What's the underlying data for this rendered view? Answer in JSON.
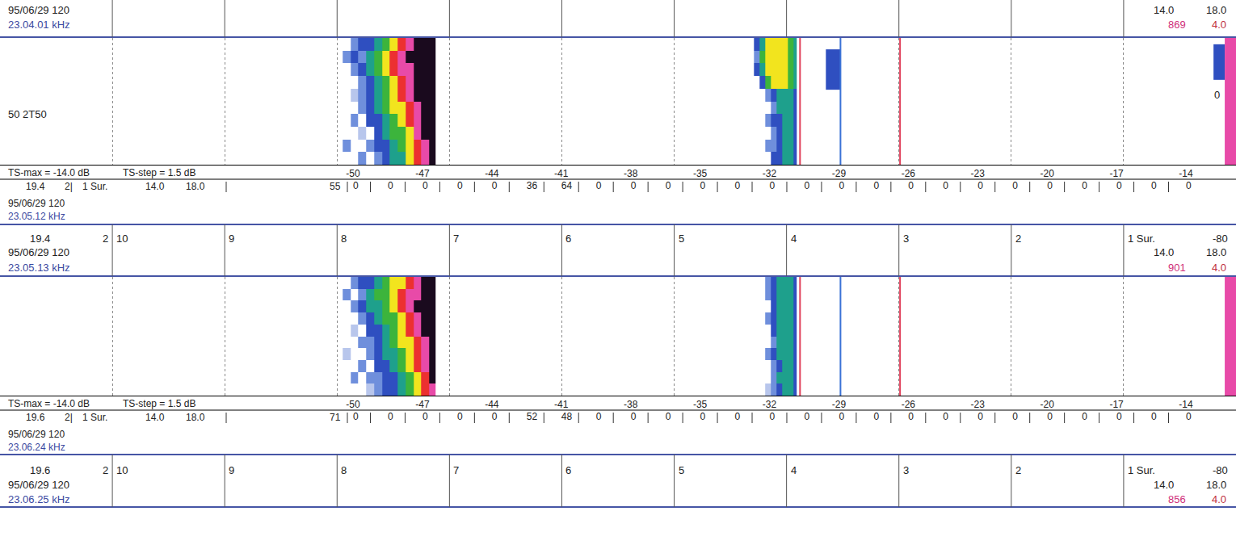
{
  "chart_data": {
    "type": "echogram",
    "xlim": [
      11,
      0
    ],
    "xticks": [
      10,
      9,
      8,
      7,
      6,
      5,
      4,
      3,
      2,
      {
        "value": 1,
        "label": "1 Sur."
      }
    ],
    "ylim": [
      0,
      10
    ],
    "grid": true,
    "zlim": [
      -80,
      -44
    ],
    "colors": [
      "#b8c6ec",
      "#6f8fdc",
      "#2f4fc0",
      "#1ea08c",
      "#3cb43c",
      "#f2e41e",
      "#ec3030",
      "#e84aa8",
      "#1a0a1e"
    ],
    "ts_axis": {
      "caption": [
        "TS-max = -14.0 dB",
        "TS-step = 1.5 dB"
      ],
      "xlim": [
        -50,
        -14
      ],
      "xticks": [
        -50,
        -47,
        -44,
        -41,
        -38,
        -35,
        -32,
        -29,
        -26,
        -23,
        -20,
        -17,
        -14
      ],
      "values": [
        -50,
        -48.5,
        -47,
        -45.5,
        -44,
        -42.5,
        -41,
        -39.5,
        -38,
        -36.5,
        -35,
        -33.5,
        -32,
        -30.5,
        -29,
        -27.5,
        -26,
        -24.5,
        -23,
        -21.5,
        -20,
        -18.5,
        -17,
        -15.5,
        -14
      ]
    },
    "headers": [
      {
        "date": "95/06/29 120",
        "freq": "23.04.01 kHz",
        "right_top": [
          "14.0",
          "18.0"
        ],
        "right_bottom": [
          "869",
          "4.0"
        ],
        "tick_labels": false
      },
      {
        "top_left": [
          "19.4",
          "2"
        ],
        "top_right": "-80",
        "date": "95/06/29 120",
        "freq": "23.05.13 kHz",
        "right_top": [
          "14.0",
          "18.0"
        ],
        "right_bottom": [
          "901",
          "4.0"
        ]
      },
      {
        "top_left": [
          "19.6",
          "2"
        ],
        "top_right": "-80",
        "date": "95/06/29 120",
        "freq": "23.06.25 kHz",
        "right_top": [
          "14.0",
          "18.0"
        ],
        "right_bottom": [
          "856",
          "4.0"
        ]
      }
    ],
    "panels": [
      {
        "left_label": "50 2T50",
        "right_label": "0",
        "echoes": [
          {
            "x": [
              7.95,
              7.88,
              7.81,
              7.74,
              7.67,
              7.6,
              7.53,
              7.46,
              7.39,
              7.32,
              7.25,
              7.18,
              7.12
            ],
            "y": [
              0,
              1,
              2,
              3,
              4,
              5,
              6,
              7,
              8,
              9,
              10
            ],
            "z": [
              [
                null,
                null,
                -76,
                null,
                -73,
                -71,
                -68,
                -65,
                -60,
                -55,
                -50,
                -47
              ],
              [
                -76,
                null,
                null,
                -74,
                -71,
                -69,
                -66,
                -63,
                -58,
                -54,
                -49,
                -47
              ],
              [
                null,
                null,
                -77,
                null,
                -72,
                -68,
                -64,
                -61,
                -57,
                -52,
                -48,
                -46
              ],
              [
                null,
                -75,
                null,
                -72,
                -70,
                -66,
                -62,
                -59,
                -55,
                -51,
                -47,
                -46
              ],
              [
                null,
                null,
                -76,
                -72,
                -67,
                -63,
                -60,
                -57,
                -53,
                -49,
                -46,
                -45
              ],
              [
                null,
                -77,
                -73,
                -69,
                -65,
                -62,
                -58,
                -54,
                -50,
                -47,
                -45,
                -46
              ],
              [
                null,
                null,
                -74,
                -70,
                -66,
                -61,
                -57,
                -54,
                -51,
                -47,
                -46,
                -45
              ],
              [
                null,
                -74,
                -70,
                -66,
                -63,
                -60,
                -56,
                -52,
                -49,
                -46,
                -45,
                -46
              ],
              [
                -74,
                -70,
                -74,
                -66,
                -62,
                -58,
                -54,
                -50,
                -46,
                -45,
                -45,
                -46
              ],
              [
                null,
                -74,
                -70,
                -70,
                -66,
                -62,
                -58,
                -55,
                -50,
                -46,
                -45,
                -45
              ]
            ]
          },
          {
            "x": [
              4.29,
              4.24,
              4.19,
              4.14,
              4.09,
              4.04,
              3.99,
              3.94,
              3.91
            ],
            "y": [
              0,
              1,
              2,
              3,
              4,
              5,
              6,
              7,
              8,
              9,
              10
            ],
            "z": [
              [
                null,
                null,
                null,
                -72,
                -69,
                -67,
                -66,
                -70
              ],
              [
                null,
                null,
                -75,
                -73,
                -70,
                -66,
                -67,
                -71
              ],
              [
                null,
                null,
                null,
                -74,
                -69,
                -67,
                -66,
                -72
              ],
              [
                null,
                null,
                -76,
                -72,
                -69,
                -66,
                -66,
                -70
              ],
              [
                null,
                null,
                null,
                -73,
                -68,
                -66,
                -67,
                -71
              ],
              [
                null,
                null,
                -74,
                -70,
                -68,
                -65,
                -66,
                -70
              ],
              [
                null,
                -70,
                -62,
                -59,
                -58,
                -60,
                -64,
                -66
              ],
              [
                -71,
                -66,
                -58,
                -57,
                -58,
                -57,
                -63,
                -65
              ],
              [
                -73,
                -62,
                -57,
                -58,
                -57,
                -58,
                -61,
                -66
              ],
              [
                -71,
                -66,
                -58,
                -57,
                -58,
                -57,
                -62,
                -65
              ]
            ]
          },
          {
            "x": [
              3.65,
              3.52
            ],
            "y": [
              5.9,
              9.1
            ],
            "z": [
              [
                -70
              ]
            ]
          },
          {
            "x": [
              0.2,
              0.1
            ],
            "y": [
              6.7,
              9.5
            ],
            "z": [
              [
                -70
              ]
            ]
          },
          {
            "x": [
              0.1,
              0
            ],
            "y": [
              0,
              10
            ],
            "z": [
              [
                -50
              ]
            ]
          }
        ],
        "lines": [
          {
            "x": 3.88,
            "color": "#e0405a"
          },
          {
            "x": 3.52,
            "color": "#3a72d6"
          },
          {
            "x": 2.99,
            "color": "#e0405a"
          }
        ],
        "row_fields": [
          "19.4",
          "2|",
          "1 Sur.",
          "14.0",
          "18.0"
        ],
        "total": 55,
        "counts": [
          0,
          0,
          0,
          0,
          0,
          36,
          64,
          0,
          0,
          0,
          0,
          0,
          0,
          0,
          0,
          0,
          0,
          0,
          0,
          0,
          0,
          0,
          0,
          0,
          0
        ],
        "footer": [
          "95/06/29 120",
          "23.05.12 kHz"
        ]
      },
      {
        "echoes": [
          {
            "x": [
              7.95,
              7.88,
              7.81,
              7.74,
              7.67,
              7.6,
              7.53,
              7.46,
              7.39,
              7.32,
              7.25,
              7.18,
              7.12
            ],
            "y": [
              0,
              1,
              2,
              3,
              4,
              5,
              6,
              7,
              8,
              9,
              10
            ],
            "z": [
              [
                null,
                null,
                null,
                -77,
                -74,
                -72,
                -70,
                -67,
                -64,
                -59,
                -55,
                -49
              ],
              [
                null,
                -76,
                null,
                -75,
                -73,
                -71,
                -69,
                -66,
                -62,
                -58,
                -53,
                -48
              ],
              [
                null,
                null,
                -76,
                null,
                -72,
                -70,
                -67,
                -64,
                -60,
                -56,
                -52,
                -47
              ],
              [
                -77,
                null,
                null,
                -74,
                -71,
                -68,
                -65,
                -62,
                -58,
                -54,
                -50,
                -46
              ],
              [
                null,
                null,
                -75,
                -73,
                -70,
                -67,
                -63,
                -60,
                -57,
                -53,
                -49,
                -46
              ],
              [
                null,
                -77,
                null,
                -72,
                -69,
                -65,
                -62,
                -59,
                -55,
                -51,
                -48,
                -45
              ],
              [
                null,
                null,
                -74,
                -71,
                -67,
                -64,
                -61,
                -58,
                -54,
                -50,
                -46,
                -46
              ],
              [
                null,
                -76,
                -71,
                -68,
                -66,
                -63,
                -59,
                -55,
                -52,
                -48,
                -47,
                -45
              ],
              [
                -76,
                null,
                -73,
                -68,
                -64,
                -61,
                -58,
                -55,
                -51,
                -49,
                -46,
                -45
              ],
              [
                null,
                -75,
                -72,
                -69,
                -66,
                -62,
                -60,
                -57,
                -53,
                -50,
                -46,
                -45
              ]
            ]
          },
          {
            "x": [
              4.19,
              4.14,
              4.09,
              4.04,
              3.99,
              3.94,
              3.91
            ],
            "y": [
              0,
              1,
              2,
              3,
              4,
              5,
              6,
              7,
              8,
              9,
              10
            ],
            "z": [
              [
                -77,
                -73,
                -69,
                -66,
                -67,
                -70
              ],
              [
                null,
                -74,
                -68,
                -67,
                -66,
                -71
              ],
              [
                null,
                -73,
                -69,
                -66,
                -66,
                -72
              ],
              [
                -76,
                -72,
                -68,
                -66,
                -67,
                -70
              ],
              [
                null,
                -73,
                -67,
                -65,
                -66,
                -71
              ],
              [
                null,
                -71,
                -68,
                -66,
                -66,
                -70
              ],
              [
                -76,
                -72,
                -66,
                -65,
                -67,
                -70
              ],
              [
                null,
                -70,
                -67,
                -66,
                -66,
                -71
              ],
              [
                -75,
                -71,
                -66,
                -65,
                -67,
                -69
              ],
              [
                -74,
                -70,
                -67,
                -66,
                -66,
                -70
              ]
            ]
          },
          {
            "x": [
              0.1,
              0
            ],
            "y": [
              0,
              10
            ],
            "z": [
              [
                -50
              ]
            ]
          }
        ],
        "lines": [
          {
            "x": 3.88,
            "color": "#e0405a"
          },
          {
            "x": 3.52,
            "color": "#3a72d6"
          },
          {
            "x": 2.99,
            "color": "#e0405a"
          }
        ],
        "row_fields": [
          "19.6",
          "2|",
          "1 Sur.",
          "14.0",
          "18.0"
        ],
        "total": 71,
        "counts": [
          0,
          0,
          0,
          0,
          0,
          52,
          48,
          0,
          0,
          0,
          0,
          0,
          0,
          0,
          0,
          0,
          0,
          0,
          0,
          0,
          0,
          0,
          0,
          0,
          0
        ],
        "footer": [
          "95/06/29 120",
          "23.06.24 kHz"
        ]
      }
    ]
  }
}
